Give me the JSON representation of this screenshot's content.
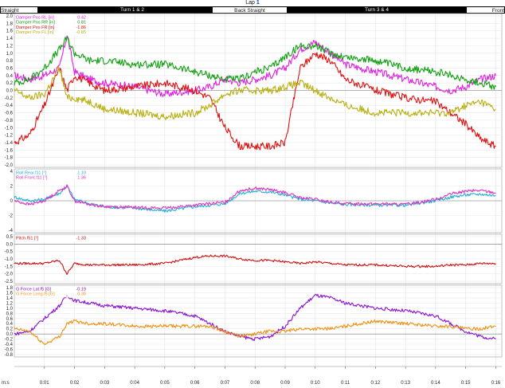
{
  "top": {
    "lap_label": "Lap",
    "lap_number": "1",
    "segments": [
      {
        "label": "Straight",
        "style": "light"
      },
      {
        "label": "Turn 1 & 2",
        "style": "dark"
      },
      {
        "label": "Back Straight",
        "style": "light"
      },
      {
        "label": "Turn 3 & 4",
        "style": "dark"
      },
      {
        "label": "Front",
        "style": "light"
      }
    ]
  },
  "x_axis": {
    "unit_label": "m:s",
    "ticks": [
      "0:01",
      "0:02",
      "0:03",
      "0:04",
      "0:05",
      "0:06",
      "0:07",
      "0:08",
      "0:09",
      "0:10",
      "0:11",
      "0:12",
      "0:13",
      "0:14",
      "0:15",
      "0:16"
    ]
  },
  "colors": {
    "magenta": "#e020e0",
    "red": "#e01010",
    "green": "#10a010",
    "olive": "#b8b010",
    "cyan": "#20b0d8",
    "pink": "#e030c0",
    "purple": "#8a10d0",
    "orange": "#f09010",
    "crimson": "#d01010"
  },
  "chart_data": [
    {
      "type": "line",
      "ylim": [
        -2.0,
        2.0
      ],
      "yticks": [
        "2.0",
        "1.8",
        "1.6",
        "1.4",
        "1.2",
        "1.0",
        "0.8",
        "0.6",
        "0.4",
        "0.2",
        "0.0",
        "-0.2",
        "-0.4",
        "-0.6",
        "-0.8",
        "-1.0",
        "-1.2",
        "-1.4",
        "-1.6",
        "-1.8",
        "-2.0"
      ],
      "x": [
        0.0,
        0.5,
        1.0,
        1.5,
        1.75,
        2.0,
        2.5,
        3.0,
        4.0,
        5.0,
        6.0,
        6.5,
        7.0,
        7.5,
        8.0,
        8.5,
        9.0,
        9.5,
        10.0,
        10.5,
        11.0,
        12.0,
        13.0,
        14.0,
        14.5,
        15.0,
        15.5,
        16.0
      ],
      "series": [
        {
          "name": "Damper Pos RL [in]",
          "value_label": "0.42",
          "color": "#e020e0",
          "values": [
            0.4,
            0.3,
            0.4,
            0.6,
            1.5,
            0.5,
            0.3,
            0.2,
            0.1,
            -0.1,
            0.0,
            0.1,
            0.3,
            0.2,
            0.3,
            0.4,
            0.6,
            1.1,
            1.3,
            1.0,
            0.7,
            0.5,
            0.3,
            0.1,
            0.0,
            0.1,
            0.3,
            0.4
          ]
        },
        {
          "name": "Damper Pos RR [in]",
          "value_label": "0.81",
          "color": "#10a010",
          "values": [
            0.2,
            0.3,
            0.6,
            1.1,
            1.4,
            1.0,
            0.8,
            0.8,
            0.7,
            0.7,
            0.5,
            0.4,
            0.3,
            0.3,
            0.5,
            0.6,
            0.9,
            1.2,
            1.2,
            1.0,
            0.9,
            0.8,
            0.6,
            0.5,
            0.4,
            0.3,
            0.2,
            0.1
          ]
        },
        {
          "name": "Damper Pos FR [in]",
          "value_label": "-1.86",
          "color": "#e01010",
          "values": [
            -1.4,
            -1.2,
            -0.4,
            0.6,
            0.0,
            0.4,
            0.2,
            0.0,
            0.1,
            0.2,
            0.0,
            -0.2,
            -1.0,
            -1.5,
            -1.5,
            -1.5,
            -1.4,
            0.6,
            1.0,
            0.8,
            0.3,
            0.0,
            -0.2,
            -0.3,
            -0.6,
            -0.9,
            -1.3,
            -1.5
          ]
        },
        {
          "name": "Damper Pos FL [in]",
          "value_label": "-0.85",
          "color": "#b8b010",
          "values": [
            0.0,
            -0.2,
            -0.1,
            0.6,
            -0.2,
            -0.2,
            -0.3,
            -0.5,
            -0.6,
            -0.7,
            -0.6,
            -0.4,
            -0.1,
            0.0,
            0.0,
            0.0,
            0.1,
            0.2,
            0.0,
            -0.2,
            -0.4,
            -0.6,
            -0.6,
            -0.6,
            -0.6,
            -0.4,
            -0.3,
            -0.5
          ]
        }
      ]
    },
    {
      "type": "line",
      "ylim": [
        -4,
        4
      ],
      "yticks": [
        "4",
        "2",
        "0",
        "-2",
        "-4"
      ],
      "x": [
        0.0,
        0.5,
        1.0,
        1.5,
        1.75,
        2.0,
        2.5,
        3.0,
        4.0,
        5.0,
        6.0,
        6.5,
        7.0,
        7.5,
        8.0,
        8.5,
        9.0,
        9.5,
        10.0,
        10.5,
        11.0,
        12.0,
        13.0,
        14.0,
        14.5,
        15.0,
        15.5,
        16.0
      ],
      "series": [
        {
          "name": "Roll Rear.f11 [°]",
          "value_label": "1.10",
          "color": "#20b0d8",
          "values": [
            0.5,
            0.0,
            0.2,
            1.0,
            2.0,
            0.2,
            -0.4,
            -0.8,
            -1.0,
            -1.4,
            -0.8,
            -0.6,
            -0.4,
            1.0,
            1.3,
            1.2,
            0.8,
            0.2,
            0.0,
            -0.3,
            -0.5,
            -0.6,
            -0.6,
            0.0,
            0.5,
            0.8,
            0.9,
            0.7
          ]
        },
        {
          "name": "Roll Front.f11 [°]",
          "value_label": "1.36",
          "color": "#e030c0",
          "values": [
            0.0,
            -0.5,
            0.0,
            1.4,
            2.0,
            0.0,
            -0.5,
            -0.8,
            -0.9,
            -1.0,
            -0.6,
            -0.4,
            -0.2,
            1.4,
            1.7,
            1.5,
            1.1,
            0.4,
            0.2,
            -0.2,
            -0.4,
            -0.4,
            -0.5,
            0.2,
            0.9,
            1.3,
            1.4,
            1.1
          ]
        }
      ]
    },
    {
      "type": "line",
      "ylim": [
        -2.5,
        0.5
      ],
      "yticks": [
        "0.5",
        "0.0",
        "-0.5",
        "-1.0",
        "-1.5",
        "-2.0",
        "-2.5"
      ],
      "x": [
        0.0,
        0.5,
        1.0,
        1.5,
        1.75,
        2.0,
        2.5,
        3.0,
        4.0,
        5.0,
        6.0,
        6.5,
        7.0,
        7.5,
        8.0,
        8.5,
        9.0,
        9.5,
        10.0,
        10.5,
        11.0,
        12.0,
        13.0,
        14.0,
        14.5,
        15.0,
        15.5,
        16.0
      ],
      "series": [
        {
          "name": "Pitch.f51 [°]",
          "value_label": "-1.33",
          "color": "#d01010",
          "values": [
            -1.3,
            -1.3,
            -1.3,
            -1.1,
            -2.0,
            -1.3,
            -1.4,
            -1.4,
            -1.4,
            -1.3,
            -0.9,
            -0.8,
            -0.8,
            -1.0,
            -1.1,
            -1.1,
            -1.2,
            -1.3,
            -1.2,
            -1.3,
            -1.4,
            -1.4,
            -1.5,
            -1.5,
            -1.4,
            -1.4,
            -1.3,
            -1.3
          ]
        }
      ]
    },
    {
      "type": "line",
      "ylim": [
        -0.8,
        1.8
      ],
      "yticks": [
        "1.8",
        "1.6",
        "1.4",
        "1.2",
        "1.0",
        "0.8",
        "0.6",
        "0.4",
        "0.2",
        "0.0",
        "-0.2",
        "-0.4",
        "-0.6",
        "-0.8"
      ],
      "x": [
        0.0,
        0.5,
        1.0,
        1.5,
        1.75,
        2.0,
        2.5,
        3.0,
        4.0,
        5.0,
        6.0,
        6.5,
        7.0,
        7.5,
        8.0,
        8.5,
        9.0,
        9.5,
        10.0,
        10.5,
        11.0,
        12.0,
        13.0,
        14.0,
        14.5,
        15.0,
        15.5,
        16.0
      ],
      "series": [
        {
          "name": "G Force Lat.f5 [G]",
          "value_label": "-0.19",
          "color": "#8a10d0",
          "values": [
            0.0,
            0.1,
            0.6,
            1.1,
            1.5,
            1.3,
            1.2,
            1.1,
            1.0,
            0.9,
            0.7,
            0.4,
            0.1,
            -0.1,
            -0.2,
            -0.1,
            0.3,
            1.0,
            1.5,
            1.4,
            1.2,
            1.0,
            0.9,
            0.7,
            0.4,
            0.1,
            -0.1,
            -0.2
          ]
        },
        {
          "name": "G Force Long.f5 [G]",
          "value_label": "0.30",
          "color": "#f09010",
          "values": [
            0.2,
            0.1,
            -0.4,
            -0.1,
            0.4,
            0.5,
            0.4,
            0.4,
            0.3,
            0.3,
            0.3,
            0.3,
            0.1,
            -0.1,
            0.0,
            0.1,
            0.1,
            0.2,
            0.2,
            0.2,
            0.3,
            0.5,
            0.4,
            0.3,
            0.3,
            0.2,
            0.2,
            0.3
          ]
        }
      ]
    }
  ]
}
